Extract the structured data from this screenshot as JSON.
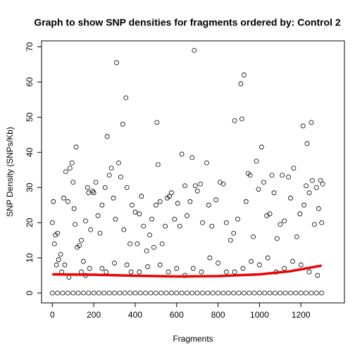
{
  "chart_data": {
    "type": "scatter",
    "title": "Graph to show SNP densities for fragments ordered by: Control 2",
    "x_label": "Fragments",
    "y_label": "SNP Density (SNPs/Kb)",
    "xlim": [
      -52,
      1410
    ],
    "ylim": [
      -2.8,
      71.7
    ],
    "xticks": [
      0,
      200,
      400,
      600,
      800,
      1000,
      1200
    ],
    "yticks": [
      0,
      10,
      20,
      30,
      40,
      50,
      60,
      70
    ],
    "series": [
      {
        "color": "#000000",
        "x": [
          310,
          685,
          355,
          265,
          340,
          505,
          910,
          925,
          880,
          915,
          1210,
          1250,
          1230,
          1010,
          115,
          0,
          5,
          10,
          15,
          25,
          30,
          40,
          55,
          65,
          75,
          85,
          95,
          100,
          105,
          110,
          120,
          130,
          140,
          150,
          160,
          170,
          175,
          185,
          195,
          200,
          210,
          220,
          230,
          240,
          255,
          275,
          285,
          295,
          305,
          320,
          330,
          345,
          360,
          375,
          385,
          400,
          410,
          420,
          430,
          440,
          455,
          470,
          480,
          490,
          500,
          510,
          520,
          530,
          545,
          555,
          565,
          575,
          590,
          605,
          615,
          625,
          640,
          650,
          665,
          675,
          690,
          700,
          715,
          725,
          745,
          755,
          770,
          790,
          810,
          825,
          840,
          860,
          875,
          895,
          935,
          945,
          955,
          970,
          985,
          995,
          1020,
          1035,
          1050,
          1060,
          1070,
          1085,
          1100,
          1110,
          1120,
          1140,
          1150,
          1165,
          1180,
          1195,
          1215,
          1225,
          1240,
          1255,
          1265,
          1275,
          1285,
          1295,
          1300,
          1305,
          20,
          45,
          60,
          80,
          140,
          160,
          180,
          240,
          260,
          300,
          360,
          380,
          420,
          460,
          520,
          560,
          600,
          640,
          680,
          720,
          760,
          800,
          840,
          880,
          920,
          960,
          1000,
          1040,
          1080,
          1120,
          1160,
          1200,
          1240,
          1280,
          0,
          25,
          50,
          75,
          100,
          125,
          150,
          175,
          200,
          225,
          250,
          275,
          300,
          325,
          350,
          375,
          400,
          425,
          450,
          475,
          500,
          525,
          550,
          575,
          600,
          625,
          650,
          675,
          700,
          725,
          750,
          775,
          800,
          825,
          850,
          875,
          900,
          925,
          950,
          975,
          1000,
          1025,
          1050,
          1075,
          1100,
          1125,
          1150,
          1175,
          1200,
          1225,
          1250,
          1275,
          1300
        ],
        "values": [
          65.5,
          69,
          55.5,
          44.5,
          48,
          48.5,
          59.5,
          62,
          49,
          49.5,
          47.5,
          48.5,
          42.5,
          41.5,
          41.5,
          20,
          26,
          14,
          16.5,
          17,
          9.5,
          11,
          27,
          34.5,
          26,
          35.5,
          37,
          31.5,
          24,
          19.5,
          13,
          13.5,
          15,
          9,
          20.5,
          30,
          28.5,
          18,
          29,
          28.5,
          31.5,
          22,
          17,
          25,
          30,
          33.5,
          35.5,
          27,
          21,
          37,
          33,
          18,
          30,
          14,
          25,
          23,
          14,
          22.5,
          27.5,
          19,
          12,
          16.5,
          21,
          13,
          25,
          36.5,
          26,
          14,
          19,
          27,
          27.5,
          28.5,
          21,
          25.5,
          19,
          39.5,
          30.5,
          22,
          26,
          38.5,
          30.5,
          29,
          31,
          20,
          37,
          25,
          19,
          26.5,
          31.5,
          31,
          20,
          15,
          17,
          21,
          26,
          34,
          33.5,
          16,
          37.5,
          29.5,
          31.5,
          22,
          22.5,
          33.5,
          28.5,
          15.5,
          19.5,
          33.5,
          20.5,
          33,
          27,
          35.5,
          16,
          22.5,
          25,
          30.5,
          28.5,
          32,
          19.5,
          30,
          24,
          32,
          20,
          31,
          8,
          6,
          8,
          4.5,
          6,
          5,
          7,
          7,
          6,
          8.5,
          8,
          6,
          6,
          7.5,
          8,
          6,
          7,
          5,
          7,
          6,
          10,
          8.5,
          6,
          6,
          7,
          9,
          8,
          10,
          6,
          7,
          9,
          8,
          6,
          5,
          0,
          0,
          0,
          0,
          0,
          0,
          0,
          0,
          0,
          0,
          0,
          0,
          0,
          0,
          0,
          0,
          0,
          0,
          0,
          0,
          0,
          0,
          0,
          0,
          0,
          0,
          0,
          0,
          0,
          0,
          0,
          0,
          0,
          0,
          0,
          0,
          0,
          0,
          0,
          0,
          0,
          0,
          0,
          0,
          0,
          0,
          0,
          0,
          0,
          0,
          0,
          0,
          0
        ]
      },
      {
        "type": "line",
        "color": "#ee0000",
        "x": [
          0,
          200,
          400,
          600,
          800,
          1000,
          1150,
          1300
        ],
        "values": [
          5.3,
          5.2,
          4.9,
          4.7,
          4.8,
          5.3,
          6.2,
          7.8
        ]
      }
    ]
  }
}
